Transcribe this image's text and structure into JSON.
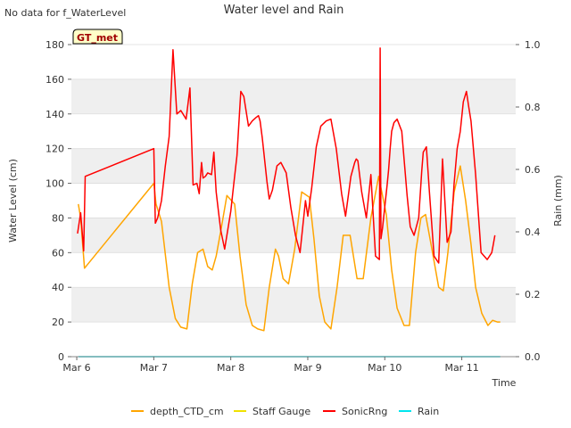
{
  "header": {
    "no_data_note": "No data for f_WaterLevel",
    "badge": "GT_met"
  },
  "chart_data": {
    "type": "line",
    "title": "Water level and Rain",
    "xlabel": "Time",
    "ylabel": "Water Level (cm)",
    "y2label": "Rain (mm)",
    "xlim": [
      -0.07,
      5.7
    ],
    "ylim": [
      0,
      180
    ],
    "y2lim": [
      0,
      1.0
    ],
    "x_ticks": [
      0,
      1,
      2,
      3,
      4,
      5
    ],
    "x_tick_labels": [
      "Mar 6",
      "Mar 7",
      "Mar 8",
      "Mar 9",
      "Mar 10",
      "Mar 11"
    ],
    "y_ticks": [
      0,
      20,
      40,
      60,
      80,
      100,
      120,
      140,
      160,
      180
    ],
    "y2_ticks": [
      0,
      0.2,
      0.4,
      0.6,
      0.8,
      1.0
    ],
    "y2_tick_labels": [
      "0.0",
      "0.2",
      "0.4",
      "0.6",
      "0.8",
      "1.0"
    ],
    "grid": "horizontal bands",
    "legend_position": "bottom",
    "series": [
      {
        "name": "depth_CTD_cm",
        "color": "#FFA500",
        "axis": "left",
        "x": [
          0.02,
          0.05,
          0.1,
          1.0,
          1.03,
          1.1,
          1.2,
          1.28,
          1.35,
          1.43,
          1.5,
          1.57,
          1.64,
          1.7,
          1.76,
          1.81,
          1.88,
          1.95,
          2.05,
          2.12,
          2.2,
          2.28,
          2.35,
          2.43,
          2.5,
          2.58,
          2.62,
          2.68,
          2.75,
          2.83,
          2.92,
          3.02,
          3.08,
          3.15,
          3.22,
          3.3,
          3.38,
          3.46,
          3.55,
          3.64,
          3.72,
          3.82,
          3.92,
          4.02,
          4.09,
          4.16,
          4.25,
          4.32,
          4.4,
          4.47,
          4.53,
          4.62,
          4.7,
          4.76,
          4.82,
          4.9,
          4.98,
          5.05,
          5.12,
          5.18,
          5.26,
          5.34,
          5.4,
          5.46,
          5.5
        ],
        "y": [
          88,
          80,
          51,
          100,
          88,
          78,
          40,
          22,
          17,
          16,
          42,
          60,
          62,
          52,
          50,
          58,
          75,
          93,
          88,
          58,
          30,
          18,
          16,
          15,
          40,
          62,
          58,
          45,
          42,
          62,
          95,
          92,
          68,
          35,
          20,
          16,
          40,
          70,
          70,
          45,
          45,
          80,
          104,
          82,
          50,
          28,
          18,
          18,
          60,
          80,
          82,
          60,
          40,
          38,
          60,
          95,
          110,
          90,
          65,
          40,
          25,
          18,
          21,
          20,
          20
        ]
      },
      {
        "name": "Staff Gauge",
        "color": "#F0E100",
        "axis": "left",
        "x": [],
        "y": []
      },
      {
        "name": "SonicRng",
        "color": "#FF0000",
        "axis": "left",
        "x": [
          0.01,
          0.05,
          0.09,
          0.11,
          1.0,
          1.02,
          1.05,
          1.1,
          1.15,
          1.2,
          1.25,
          1.3,
          1.35,
          1.38,
          1.42,
          1.47,
          1.51,
          1.56,
          1.59,
          1.62,
          1.64,
          1.67,
          1.7,
          1.75,
          1.78,
          1.81,
          1.84,
          1.87,
          1.92,
          2.0,
          2.04,
          2.08,
          2.13,
          2.17,
          2.23,
          2.28,
          2.33,
          2.36,
          2.38,
          2.41,
          2.47,
          2.5,
          2.54,
          2.6,
          2.65,
          2.72,
          2.78,
          2.84,
          2.9,
          2.97,
          3.0,
          3.05,
          3.11,
          3.17,
          3.24,
          3.3,
          3.37,
          3.44,
          3.49,
          3.56,
          3.61,
          3.63,
          3.65,
          3.7,
          3.76,
          3.82,
          3.88,
          3.93,
          3.94,
          3.95,
          3.97,
          4.03,
          4.05,
          4.07,
          4.09,
          4.12,
          4.16,
          4.22,
          4.29,
          4.33,
          4.38,
          4.44,
          4.48,
          4.5,
          4.54,
          4.58,
          4.64,
          4.7,
          4.75,
          4.81,
          4.86,
          4.9,
          4.94,
          4.98,
          5.02,
          5.06,
          5.09,
          5.12,
          5.18,
          5.25,
          5.33,
          5.39,
          5.41,
          5.43
        ],
        "y": [
          71,
          83,
          61,
          104,
          120,
          77,
          80,
          90,
          110,
          127,
          177,
          140,
          142,
          140,
          137,
          155,
          99,
          100,
          94,
          112,
          103,
          104,
          106,
          105,
          118,
          95,
          84,
          73,
          62,
          84,
          100,
          116,
          153,
          150,
          133,
          136,
          138,
          139,
          136,
          126,
          101,
          91,
          96,
          110,
          112,
          106,
          86,
          70,
          60,
          90,
          81,
          97,
          121,
          133,
          136,
          137,
          120,
          94,
          81,
          104,
          112,
          114,
          113,
          95,
          80,
          105,
          58,
          56,
          178,
          68,
          74,
          99,
          108,
          120,
          130,
          135,
          137,
          130,
          93,
          75,
          70,
          80,
          107,
          118,
          121,
          95,
          58,
          54,
          114,
          66,
          72,
          100,
          120,
          130,
          147,
          153,
          144,
          136,
          105,
          60,
          56,
          60,
          65,
          70
        ]
      },
      {
        "name": "Rain",
        "color": "#00E5EE",
        "axis": "right",
        "x": [
          0.02,
          5.5
        ],
        "y": [
          0.0,
          0.0
        ]
      }
    ]
  }
}
